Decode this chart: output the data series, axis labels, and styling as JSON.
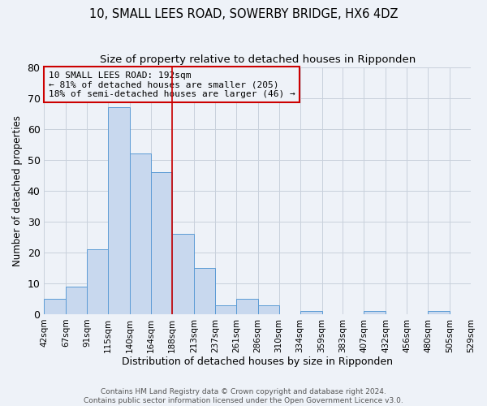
{
  "title": "10, SMALL LEES ROAD, SOWERBY BRIDGE, HX6 4DZ",
  "subtitle": "Size of property relative to detached houses in Ripponden",
  "xlabel": "Distribution of detached houses by size in Ripponden",
  "ylabel": "Number of detached properties",
  "bin_edges": [
    42,
    67,
    91,
    115,
    140,
    164,
    188,
    213,
    237,
    261,
    286,
    310,
    334,
    359,
    383,
    407,
    432,
    456,
    480,
    505,
    529
  ],
  "bar_heights": [
    5,
    9,
    21,
    67,
    52,
    46,
    26,
    15,
    3,
    5,
    3,
    0,
    1,
    0,
    0,
    1,
    0,
    0,
    1,
    0
  ],
  "bar_color": "#c8d8ee",
  "bar_edge_color": "#5b9bd5",
  "vline_x": 188,
  "vline_color": "#cc0000",
  "annotation_text": "10 SMALL LEES ROAD: 192sqm\n← 81% of detached houses are smaller (205)\n18% of semi-detached houses are larger (46) →",
  "annotation_box_edgecolor": "#cc0000",
  "ylim": [
    0,
    80
  ],
  "yticks": [
    0,
    10,
    20,
    30,
    40,
    50,
    60,
    70,
    80
  ],
  "background_color": "#eef2f8",
  "grid_color": "#c8d0dc",
  "footer_text": "Contains HM Land Registry data © Crown copyright and database right 2024.\nContains public sector information licensed under the Open Government Licence v3.0.",
  "title_fontsize": 10.5,
  "subtitle_fontsize": 9.5,
  "ylabel_fontsize": 8.5,
  "xlabel_fontsize": 9,
  "tick_label_fontsize": 7.5,
  "annotation_fontsize": 8
}
